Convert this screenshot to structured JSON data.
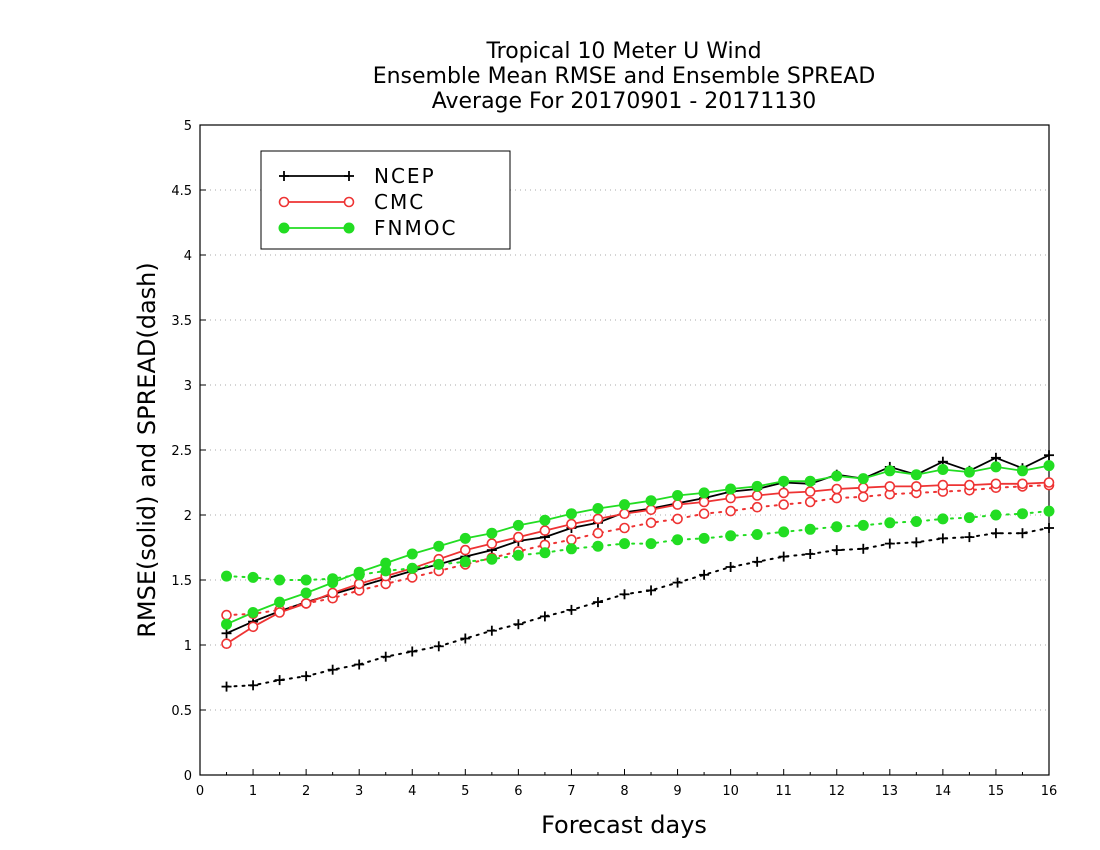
{
  "chart_data": {
    "type": "line",
    "title_lines": [
      "Tropical 10 Meter U Wind",
      "Ensemble Mean RMSE and Ensemble SPREAD",
      "Average For 20170901 - 20171130"
    ],
    "xlabel": "Forecast days",
    "ylabel": "RMSE(solid) and SPREAD(dash)",
    "xlim": [
      0,
      16
    ],
    "ylim": [
      0,
      5
    ],
    "x_ticks": [
      "0",
      "1",
      "2",
      "3",
      "4",
      "5",
      "6",
      "7",
      "8",
      "9",
      "10",
      "11",
      "12",
      "13",
      "14",
      "15",
      "16"
    ],
    "y_ticks": [
      "0",
      "0.5",
      "1",
      "1.5",
      "2",
      "2.5",
      "3",
      "3.5",
      "4",
      "4.5",
      "5"
    ],
    "grid": "horizontal dotted",
    "legend_position": "top-left",
    "x": [
      0.5,
      1,
      1.5,
      2,
      2.5,
      3,
      3.5,
      4,
      4.5,
      5,
      5.5,
      6,
      6.5,
      7,
      7.5,
      8,
      8.5,
      9,
      9.5,
      10,
      10.5,
      11,
      11.5,
      12,
      12.5,
      13,
      13.5,
      14,
      14.5,
      15,
      15.5,
      16
    ],
    "series": [
      {
        "name": "NCEP",
        "color": "#000000",
        "marker": "plus",
        "rmse": [
          1.09,
          1.18,
          1.26,
          1.33,
          1.39,
          1.45,
          1.51,
          1.57,
          1.62,
          1.68,
          1.73,
          1.8,
          1.83,
          1.9,
          1.94,
          2.02,
          2.05,
          2.09,
          2.13,
          2.18,
          2.2,
          2.25,
          2.24,
          2.31,
          2.28,
          2.37,
          2.31,
          2.41,
          2.34,
          2.44,
          2.36,
          2.46
        ],
        "spread": [
          0.68,
          0.69,
          0.73,
          0.76,
          0.81,
          0.85,
          0.91,
          0.95,
          0.99,
          1.05,
          1.11,
          1.16,
          1.22,
          1.27,
          1.33,
          1.39,
          1.42,
          1.48,
          1.54,
          1.6,
          1.64,
          1.68,
          1.7,
          1.73,
          1.74,
          1.78,
          1.79,
          1.82,
          1.83,
          1.86,
          1.86,
          1.9
        ]
      },
      {
        "name": "CMC",
        "color": "#ee3333",
        "marker": "open-circle",
        "rmse": [
          1.01,
          1.14,
          1.25,
          1.32,
          1.4,
          1.47,
          1.53,
          1.59,
          1.66,
          1.73,
          1.78,
          1.83,
          1.88,
          1.93,
          1.97,
          2.01,
          2.04,
          2.08,
          2.1,
          2.13,
          2.15,
          2.17,
          2.18,
          2.2,
          2.21,
          2.22,
          2.22,
          2.23,
          2.23,
          2.24,
          2.24,
          2.25
        ],
        "spread": [
          1.23,
          1.24,
          1.27,
          1.32,
          1.36,
          1.42,
          1.47,
          1.52,
          1.57,
          1.62,
          1.67,
          1.72,
          1.77,
          1.81,
          1.86,
          1.9,
          1.94,
          1.97,
          2.01,
          2.03,
          2.06,
          2.08,
          2.1,
          2.13,
          2.14,
          2.16,
          2.17,
          2.18,
          2.19,
          2.21,
          2.22,
          2.23
        ]
      },
      {
        "name": "FNMOC",
        "color": "#22dd22",
        "marker": "filled-circle",
        "rmse": [
          1.16,
          1.25,
          1.33,
          1.4,
          1.48,
          1.56,
          1.63,
          1.7,
          1.76,
          1.82,
          1.86,
          1.92,
          1.96,
          2.01,
          2.05,
          2.08,
          2.11,
          2.15,
          2.17,
          2.2,
          2.22,
          2.26,
          2.26,
          2.3,
          2.28,
          2.34,
          2.31,
          2.35,
          2.33,
          2.37,
          2.34,
          2.38
        ],
        "spread": [
          1.53,
          1.52,
          1.5,
          1.5,
          1.51,
          1.54,
          1.57,
          1.59,
          1.62,
          1.64,
          1.66,
          1.69,
          1.71,
          1.74,
          1.76,
          1.78,
          1.78,
          1.81,
          1.82,
          1.84,
          1.85,
          1.87,
          1.89,
          1.91,
          1.92,
          1.94,
          1.95,
          1.97,
          1.98,
          2.0,
          2.01,
          2.03
        ]
      }
    ]
  }
}
